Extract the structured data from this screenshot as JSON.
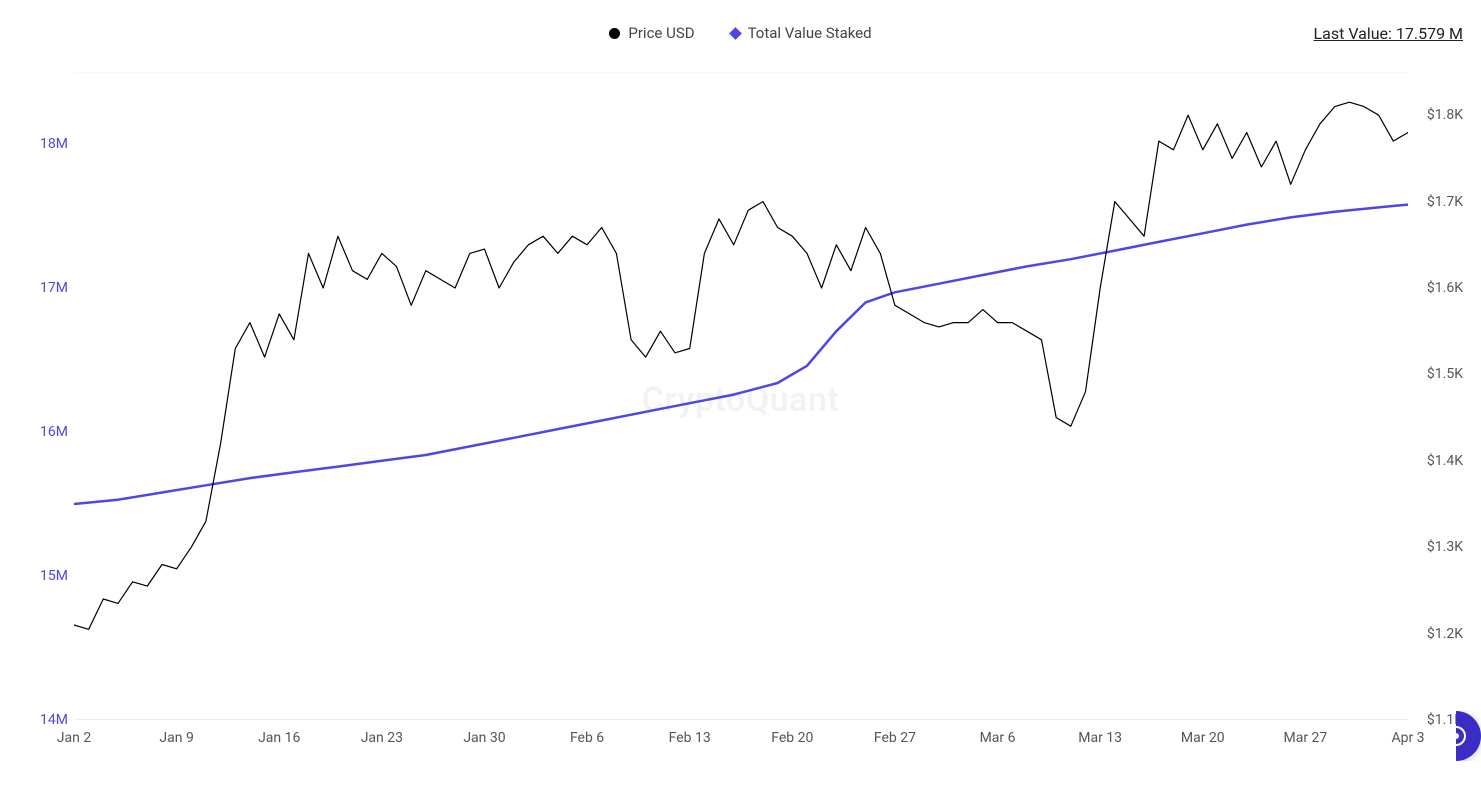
{
  "legend": {
    "series1": {
      "label": "Price USD",
      "marker_color": "#000000",
      "marker_shape": "circle"
    },
    "series2": {
      "label": "Total Value Staked",
      "marker_color": "#4f46e5",
      "marker_shape": "diamond"
    }
  },
  "last_value_label": "Last Value: 17.579 M",
  "watermark": "CryptoQuant",
  "chart": {
    "type": "dual-axis-line",
    "background_color": "#ffffff",
    "grid_color": "#f2f2f2",
    "plot_border_color": "#f0f0f0",
    "left_axis": {
      "label_color": "#4f46e5",
      "min": 14000000,
      "max": 18500000,
      "ticks": [
        {
          "value": 14000000,
          "label": "14M"
        },
        {
          "value": 15000000,
          "label": "15M"
        },
        {
          "value": 16000000,
          "label": "16M"
        },
        {
          "value": 17000000,
          "label": "17M"
        },
        {
          "value": 18000000,
          "label": "18M"
        }
      ],
      "fontsize": 14
    },
    "right_axis": {
      "label_color": "#555555",
      "min": 1100,
      "max": 1850,
      "ticks": [
        {
          "value": 1100,
          "label": "$1.1K"
        },
        {
          "value": 1200,
          "label": "$1.2K"
        },
        {
          "value": 1300,
          "label": "$1.3K"
        },
        {
          "value": 1400,
          "label": "$1.4K"
        },
        {
          "value": 1500,
          "label": "$1.5K"
        },
        {
          "value": 1600,
          "label": "$1.6K"
        },
        {
          "value": 1700,
          "label": "$1.7K"
        },
        {
          "value": 1800,
          "label": "$1.8K"
        }
      ],
      "fontsize": 14
    },
    "x_axis": {
      "min": 0,
      "max": 91,
      "ticks": [
        {
          "value": 0,
          "label": "Jan 2"
        },
        {
          "value": 7,
          "label": "Jan 9"
        },
        {
          "value": 14,
          "label": "Jan 16"
        },
        {
          "value": 21,
          "label": "Jan 23"
        },
        {
          "value": 28,
          "label": "Jan 30"
        },
        {
          "value": 35,
          "label": "Feb 6"
        },
        {
          "value": 42,
          "label": "Feb 13"
        },
        {
          "value": 49,
          "label": "Feb 20"
        },
        {
          "value": 56,
          "label": "Feb 27"
        },
        {
          "value": 63,
          "label": "Mar 6"
        },
        {
          "value": 70,
          "label": "Mar 13"
        },
        {
          "value": 77,
          "label": "Mar 20"
        },
        {
          "value": 84,
          "label": "Mar 27"
        },
        {
          "value": 91,
          "label": "Apr 3"
        }
      ],
      "fontsize": 14,
      "label_color": "#555555"
    },
    "series_price": {
      "name": "Price USD",
      "axis": "right",
      "color": "#000000",
      "line_width": 1.2,
      "data": [
        [
          0,
          1210
        ],
        [
          1,
          1205
        ],
        [
          2,
          1240
        ],
        [
          3,
          1235
        ],
        [
          4,
          1260
        ],
        [
          5,
          1255
        ],
        [
          6,
          1280
        ],
        [
          7,
          1275
        ],
        [
          8,
          1300
        ],
        [
          9,
          1330
        ],
        [
          10,
          1420
        ],
        [
          11,
          1530
        ],
        [
          12,
          1560
        ],
        [
          13,
          1520
        ],
        [
          14,
          1570
        ],
        [
          15,
          1540
        ],
        [
          16,
          1640
        ],
        [
          17,
          1600
        ],
        [
          18,
          1660
        ],
        [
          19,
          1620
        ],
        [
          20,
          1610
        ],
        [
          21,
          1640
        ],
        [
          22,
          1625
        ],
        [
          23,
          1580
        ],
        [
          24,
          1620
        ],
        [
          25,
          1610
        ],
        [
          26,
          1600
        ],
        [
          27,
          1640
        ],
        [
          28,
          1645
        ],
        [
          29,
          1600
        ],
        [
          30,
          1630
        ],
        [
          31,
          1650
        ],
        [
          32,
          1660
        ],
        [
          33,
          1640
        ],
        [
          34,
          1660
        ],
        [
          35,
          1650
        ],
        [
          36,
          1670
        ],
        [
          37,
          1640
        ],
        [
          38,
          1540
        ],
        [
          39,
          1520
        ],
        [
          40,
          1550
        ],
        [
          41,
          1525
        ],
        [
          42,
          1530
        ],
        [
          43,
          1640
        ],
        [
          44,
          1680
        ],
        [
          45,
          1650
        ],
        [
          46,
          1690
        ],
        [
          47,
          1700
        ],
        [
          48,
          1670
        ],
        [
          49,
          1660
        ],
        [
          50,
          1640
        ],
        [
          51,
          1600
        ],
        [
          52,
          1650
        ],
        [
          53,
          1620
        ],
        [
          54,
          1670
        ],
        [
          55,
          1640
        ],
        [
          56,
          1580
        ],
        [
          57,
          1570
        ],
        [
          58,
          1560
        ],
        [
          59,
          1555
        ],
        [
          60,
          1560
        ],
        [
          61,
          1560
        ],
        [
          62,
          1575
        ],
        [
          63,
          1560
        ],
        [
          64,
          1560
        ],
        [
          65,
          1550
        ],
        [
          66,
          1540
        ],
        [
          67,
          1450
        ],
        [
          68,
          1440
        ],
        [
          69,
          1480
        ],
        [
          70,
          1600
        ],
        [
          71,
          1700
        ],
        [
          72,
          1680
        ],
        [
          73,
          1660
        ],
        [
          74,
          1770
        ],
        [
          75,
          1760
        ],
        [
          76,
          1800
        ],
        [
          77,
          1760
        ],
        [
          78,
          1790
        ],
        [
          79,
          1750
        ],
        [
          80,
          1780
        ],
        [
          81,
          1740
        ],
        [
          82,
          1770
        ],
        [
          83,
          1720
        ],
        [
          84,
          1760
        ],
        [
          85,
          1790
        ],
        [
          86,
          1810
        ],
        [
          87,
          1815
        ],
        [
          88,
          1810
        ],
        [
          89,
          1800
        ],
        [
          90,
          1770
        ],
        [
          91,
          1780
        ]
      ]
    },
    "series_staked": {
      "name": "Total Value Staked",
      "axis": "left",
      "color": "#4f46e5",
      "line_width": 2.5,
      "data": [
        [
          0,
          15500000
        ],
        [
          3,
          15530000
        ],
        [
          6,
          15580000
        ],
        [
          9,
          15630000
        ],
        [
          12,
          15680000
        ],
        [
          15,
          15720000
        ],
        [
          18,
          15760000
        ],
        [
          21,
          15800000
        ],
        [
          24,
          15840000
        ],
        [
          27,
          15900000
        ],
        [
          30,
          15960000
        ],
        [
          33,
          16020000
        ],
        [
          36,
          16080000
        ],
        [
          39,
          16140000
        ],
        [
          42,
          16200000
        ],
        [
          45,
          16260000
        ],
        [
          48,
          16340000
        ],
        [
          50,
          16460000
        ],
        [
          52,
          16700000
        ],
        [
          54,
          16900000
        ],
        [
          56,
          16970000
        ],
        [
          59,
          17030000
        ],
        [
          62,
          17090000
        ],
        [
          65,
          17150000
        ],
        [
          68,
          17200000
        ],
        [
          71,
          17260000
        ],
        [
          74,
          17320000
        ],
        [
          77,
          17380000
        ],
        [
          80,
          17440000
        ],
        [
          83,
          17490000
        ],
        [
          86,
          17530000
        ],
        [
          89,
          17560000
        ],
        [
          91,
          17579000
        ]
      ]
    }
  },
  "chat_button": {
    "icon": "help-chat-icon",
    "bg_color": "#3b2cc7"
  }
}
